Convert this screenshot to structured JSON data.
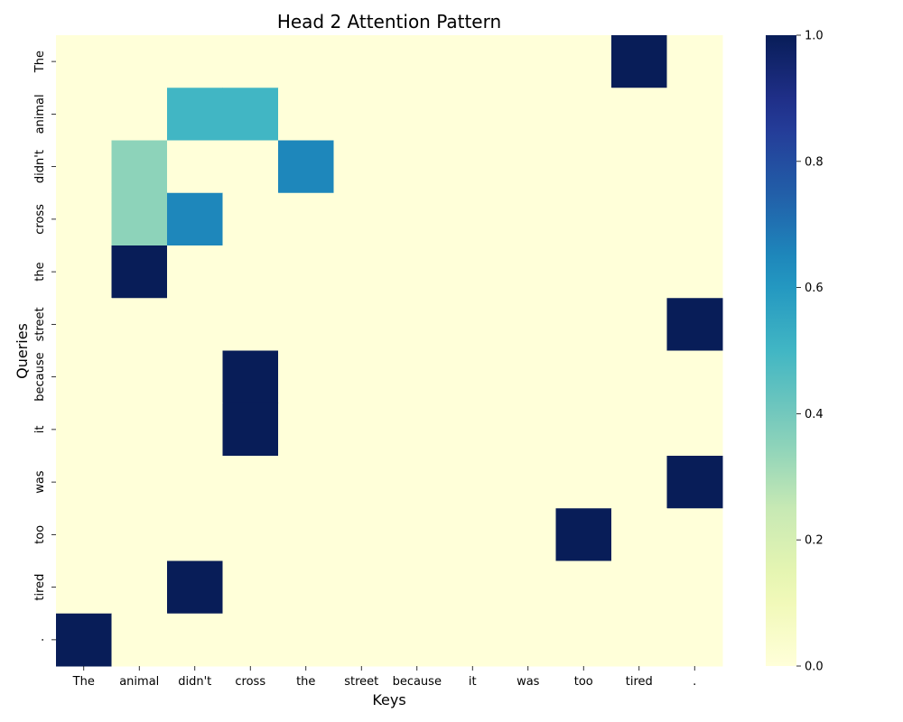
{
  "chart_data": {
    "type": "heatmap",
    "title": "Head 2 Attention Pattern",
    "xlabel": "Keys",
    "ylabel": "Queries",
    "x_tokens": [
      "The",
      "animal",
      "didn't",
      "cross",
      "the",
      "street",
      "because",
      "it",
      "was",
      "too",
      "tired",
      "."
    ],
    "y_tokens": [
      "The",
      "animal",
      "didn't",
      "cross",
      "the",
      "street",
      "because",
      "it",
      "was",
      "too",
      "tired",
      "."
    ],
    "values": [
      [
        0,
        0,
        0,
        0,
        0,
        0,
        0,
        0,
        0,
        0,
        1,
        0
      ],
      [
        0,
        0,
        0.5,
        0.5,
        0,
        0,
        0,
        0,
        0,
        0,
        0,
        0
      ],
      [
        0,
        0.35,
        0,
        0,
        0.65,
        0,
        0,
        0,
        0,
        0,
        0,
        0
      ],
      [
        0,
        0.35,
        0.65,
        0,
        0,
        0,
        0,
        0,
        0,
        0,
        0,
        0
      ],
      [
        0,
        1,
        0,
        0,
        0,
        0,
        0,
        0,
        0,
        0,
        0,
        0
      ],
      [
        0,
        0,
        0,
        0,
        0,
        0,
        0,
        0,
        0,
        0,
        0,
        1
      ],
      [
        0,
        0,
        0,
        1,
        0,
        0,
        0,
        0,
        0,
        0,
        0,
        0
      ],
      [
        0,
        0,
        0,
        1,
        0,
        0,
        0,
        0,
        0,
        0,
        0,
        0
      ],
      [
        0,
        0,
        0,
        0,
        0,
        0,
        0,
        0,
        0,
        0,
        0,
        1
      ],
      [
        0,
        0,
        0,
        0,
        0,
        0,
        0,
        0,
        0,
        1,
        0,
        0
      ],
      [
        0,
        0,
        1,
        0,
        0,
        0,
        0,
        0,
        0,
        0,
        0,
        0
      ],
      [
        1,
        0,
        0,
        0,
        0,
        0,
        0,
        0,
        0,
        0,
        0,
        0
      ]
    ],
    "colormap": "YlGnBu",
    "vmin": 0,
    "vmax": 1,
    "colorbar_ticks": [
      "0.0",
      "0.2",
      "0.4",
      "0.6",
      "0.8",
      "1.0"
    ]
  }
}
